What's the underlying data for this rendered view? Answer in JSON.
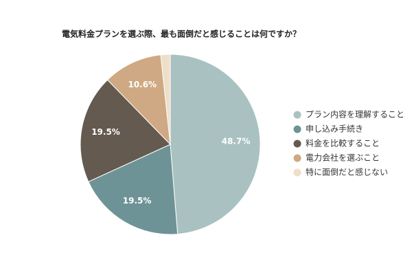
{
  "chart_data": {
    "type": "pie",
    "title": "電気料金プランを選ぶ際、最も面倒だと感じることは何ですか？",
    "categories": [
      "プラン内容を理解すること",
      "申し込み手続き",
      "料金を比較すること",
      "電力会社を選ぶこと",
      "特に面倒だと感じない"
    ],
    "values": [
      48.7,
      19.5,
      19.5,
      10.6,
      1.7
    ],
    "value_labels": [
      "48.7%",
      "19.5%",
      "19.5%",
      "10.6%",
      null
    ],
    "colors": [
      "#a9c1c1",
      "#6e9396",
      "#645a50",
      "#cfa983",
      "#eedfc8"
    ],
    "legend": "right"
  }
}
